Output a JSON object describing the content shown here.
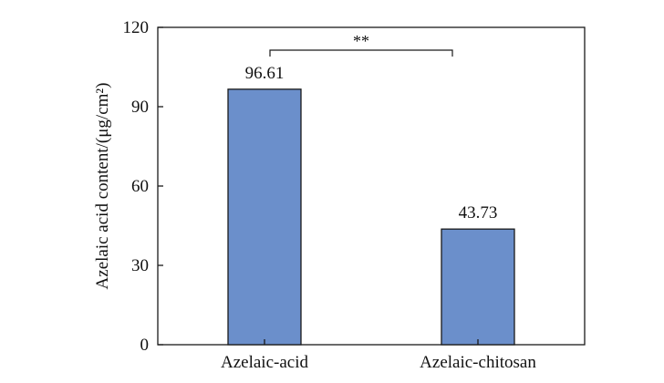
{
  "chart_data": {
    "type": "bar",
    "categories": [
      "Azelaic-acid",
      "Azelaic-chitosan"
    ],
    "values": [
      96.61,
      43.73
    ],
    "data_labels": [
      "96.61",
      "43.73"
    ],
    "title": "",
    "xlabel": "",
    "ylabel": "Azelaic acid content/(μg/cm²)",
    "ylim": [
      0,
      120
    ],
    "yticks": [
      0,
      30,
      60,
      90,
      120
    ],
    "grid": false,
    "bar_color": "#6b8fcb",
    "bar_edge_color": "#1a1a1a",
    "significance": {
      "between": [
        "Azelaic-acid",
        "Azelaic-chitosan"
      ],
      "label": "**"
    }
  }
}
